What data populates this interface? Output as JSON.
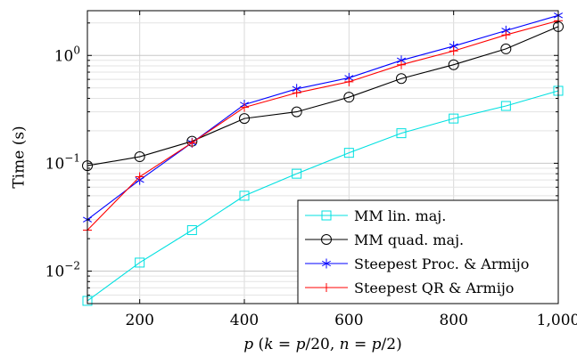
{
  "chart_data": {
    "type": "line",
    "x_scale": "linear",
    "y_scale": "log",
    "xlim": [
      100,
      1000
    ],
    "ylim": [
      0.005,
      2.6
    ],
    "x_ticks": [
      200,
      400,
      600,
      800,
      1000
    ],
    "x_tick_labels": [
      "200",
      "400",
      "600",
      "800",
      "1,000"
    ],
    "y_ticks": [
      {
        "value": 0.01,
        "base": "10",
        "exp": "−2"
      },
      {
        "value": 0.1,
        "base": "10",
        "exp": "−1"
      },
      {
        "value": 1,
        "base": "10",
        "exp": "0"
      }
    ],
    "xlabel": {
      "parts": [
        {
          "t": "p",
          "italic": true
        },
        {
          "t": " (",
          "italic": false
        },
        {
          "t": "k",
          "italic": true
        },
        {
          "t": " = ",
          "italic": false
        },
        {
          "t": "p",
          "italic": true
        },
        {
          "t": "/20, ",
          "italic": false
        },
        {
          "t": "n",
          "italic": true
        },
        {
          "t": " = ",
          "italic": false
        },
        {
          "t": "p",
          "italic": true
        },
        {
          "t": "/2)",
          "italic": false
        }
      ]
    },
    "ylabel": "Time (s)",
    "grid": true,
    "legend_position": "bottom-right",
    "x": [
      100,
      200,
      300,
      400,
      500,
      600,
      700,
      800,
      900,
      1000
    ],
    "series": [
      {
        "name": "MM lin. maj.",
        "color": "#00e0e0",
        "marker": "square",
        "values": [
          0.0053,
          0.012,
          0.024,
          0.05,
          0.08,
          0.125,
          0.19,
          0.26,
          0.34,
          0.47
        ]
      },
      {
        "name": "MM quad. maj.",
        "color": "#000000",
        "marker": "circle",
        "values": [
          0.095,
          0.115,
          0.16,
          0.26,
          0.3,
          0.41,
          0.61,
          0.82,
          1.15,
          1.85
        ]
      },
      {
        "name": "Steepest Proc. & Armijo",
        "color": "#0000ff",
        "marker": "asterisk",
        "values": [
          0.03,
          0.07,
          0.155,
          0.35,
          0.49,
          0.62,
          0.9,
          1.22,
          1.7,
          2.35
        ]
      },
      {
        "name": "Steepest QR & Armijo",
        "color": "#ff0000",
        "marker": "plus",
        "values": [
          0.024,
          0.075,
          0.155,
          0.33,
          0.45,
          0.57,
          0.82,
          1.1,
          1.55,
          2.1
        ]
      }
    ]
  }
}
